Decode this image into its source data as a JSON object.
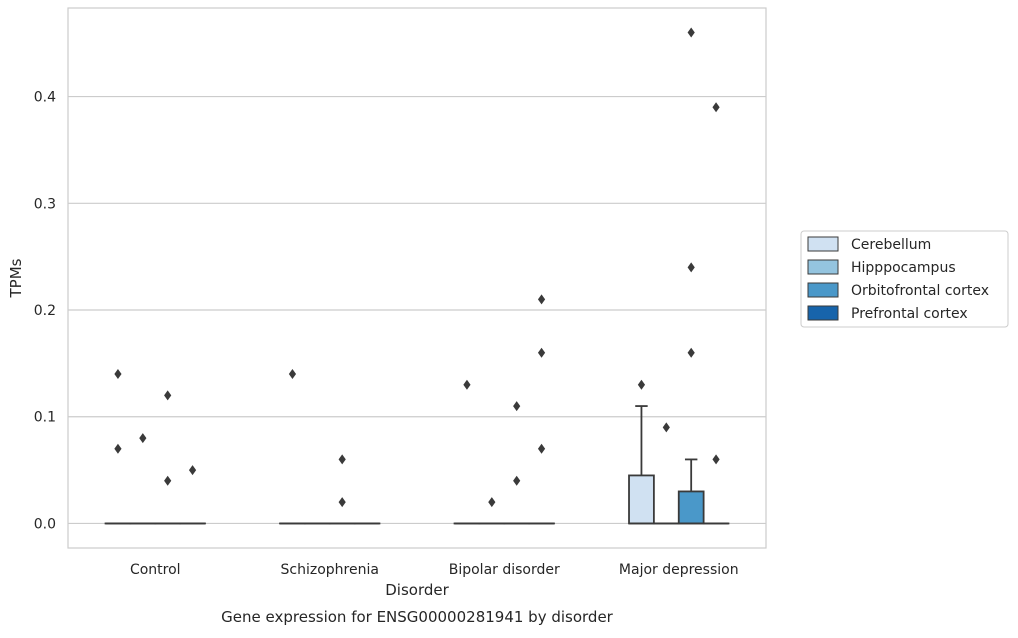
{
  "chart_data": {
    "type": "box",
    "title": "",
    "caption": "Gene expression for ENSG00000281941 by disorder",
    "xlabel": "Disorder",
    "ylabel": "TPMs",
    "categories": [
      "Control",
      "Schizophrenia",
      "Bipolar disorder",
      "Major depression"
    ],
    "ylim": [
      -0.023,
      0.483
    ],
    "yticks": [
      0.0,
      0.1,
      0.2,
      0.3,
      0.4
    ],
    "ytick_labels": [
      "0.0",
      "0.1",
      "0.2",
      "0.3",
      "0.4"
    ],
    "grid": true,
    "legend_position": "right",
    "series": [
      {
        "name": "Cerebellum",
        "color": "#d0e1f2",
        "boxes": [
          {
            "q1": 0,
            "median": 0,
            "q3": 0,
            "whisker_low": 0,
            "whisker_high": 0,
            "outliers": [
              0.14,
              0.07
            ]
          },
          {
            "q1": 0,
            "median": 0,
            "q3": 0,
            "whisker_low": 0,
            "whisker_high": 0,
            "outliers": [
              0.14
            ]
          },
          {
            "q1": 0,
            "median": 0,
            "q3": 0,
            "whisker_low": 0,
            "whisker_high": 0,
            "outliers": [
              0.13
            ]
          },
          {
            "q1": 0,
            "median": 0,
            "q3": 0.045,
            "whisker_low": 0,
            "whisker_high": 0.11,
            "outliers": [
              0.13
            ]
          }
        ]
      },
      {
        "name": "Hipppocampus",
        "color": "#94c4df",
        "boxes": [
          {
            "q1": 0,
            "median": 0,
            "q3": 0,
            "whisker_low": 0,
            "whisker_high": 0,
            "outliers": [
              0.08
            ]
          },
          {
            "q1": 0,
            "median": 0,
            "q3": 0,
            "whisker_low": 0,
            "whisker_high": 0,
            "outliers": []
          },
          {
            "q1": 0,
            "median": 0,
            "q3": 0,
            "whisker_low": 0,
            "whisker_high": 0,
            "outliers": [
              0.02
            ]
          },
          {
            "q1": 0,
            "median": 0,
            "q3": 0,
            "whisker_low": 0,
            "whisker_high": 0,
            "outliers": [
              0.09
            ]
          }
        ]
      },
      {
        "name": "Orbitofrontal cortex",
        "color": "#4a98c9",
        "boxes": [
          {
            "q1": 0,
            "median": 0,
            "q3": 0,
            "whisker_low": 0,
            "whisker_high": 0,
            "outliers": [
              0.12,
              0.04
            ]
          },
          {
            "q1": 0,
            "median": 0,
            "q3": 0,
            "whisker_low": 0,
            "whisker_high": 0,
            "outliers": [
              0.06,
              0.02
            ]
          },
          {
            "q1": 0,
            "median": 0,
            "q3": 0,
            "whisker_low": 0,
            "whisker_high": 0,
            "outliers": [
              0.11,
              0.04
            ]
          },
          {
            "q1": 0,
            "median": 0,
            "q3": 0.03,
            "whisker_low": 0,
            "whisker_high": 0.06,
            "outliers": [
              0.46,
              0.24,
              0.16
            ]
          }
        ]
      },
      {
        "name": "Prefrontal cortex",
        "color": "#1764ab",
        "boxes": [
          {
            "q1": 0,
            "median": 0,
            "q3": 0,
            "whisker_low": 0,
            "whisker_high": 0,
            "outliers": [
              0.05
            ]
          },
          {
            "q1": 0,
            "median": 0,
            "q3": 0,
            "whisker_low": 0,
            "whisker_high": 0,
            "outliers": []
          },
          {
            "q1": 0,
            "median": 0,
            "q3": 0,
            "whisker_low": 0,
            "whisker_high": 0,
            "outliers": [
              0.21,
              0.16,
              0.07
            ]
          },
          {
            "q1": 0,
            "median": 0,
            "q3": 0,
            "whisker_low": 0,
            "whisker_high": 0,
            "outliers": [
              0.39,
              0.06
            ]
          }
        ]
      }
    ]
  }
}
